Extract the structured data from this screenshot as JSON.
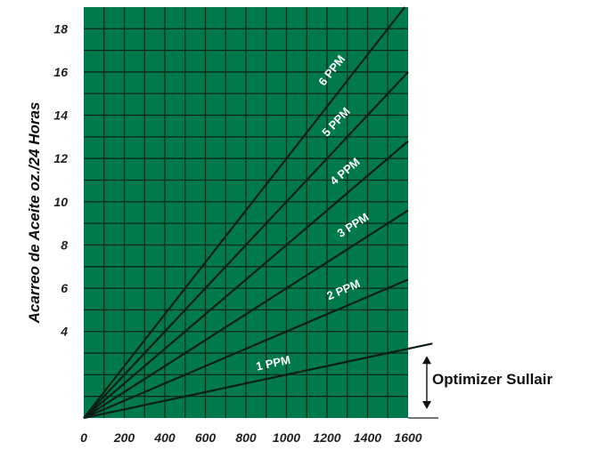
{
  "chart_data": {
    "type": "line",
    "title": "",
    "xlabel": "",
    "ylabel": "Acarreo de Aceite oz./24 Horas",
    "xlim": [
      0,
      1600
    ],
    "ylim": [
      0,
      19
    ],
    "x_ticks": [
      "0",
      "200",
      "400",
      "600",
      "800",
      "1000",
      "1200",
      "1400",
      "1600"
    ],
    "y_ticks": [
      "4",
      "6",
      "8",
      "10",
      "12",
      "14",
      "16",
      "18"
    ],
    "grid": true,
    "background_color": "#007a4d",
    "series": [
      {
        "name": "1 PPM",
        "x": [
          0,
          1600
        ],
        "y": [
          0,
          3.2
        ]
      },
      {
        "name": "2 PPM",
        "x": [
          0,
          1600
        ],
        "y": [
          0,
          6.4
        ]
      },
      {
        "name": "3 PPM",
        "x": [
          0,
          1600
        ],
        "y": [
          0,
          9.6
        ]
      },
      {
        "name": "4 PPM",
        "x": [
          0,
          1600
        ],
        "y": [
          0,
          12.8
        ]
      },
      {
        "name": "5 PPM",
        "x": [
          0,
          1600
        ],
        "y": [
          0,
          16.0
        ]
      },
      {
        "name": "6 PPM",
        "x": [
          0,
          1600
        ],
        "y": [
          0,
          19.2
        ]
      }
    ],
    "annotation": {
      "text": "Optimizer Sullair",
      "y_range": [
        0,
        3.2
      ]
    }
  }
}
